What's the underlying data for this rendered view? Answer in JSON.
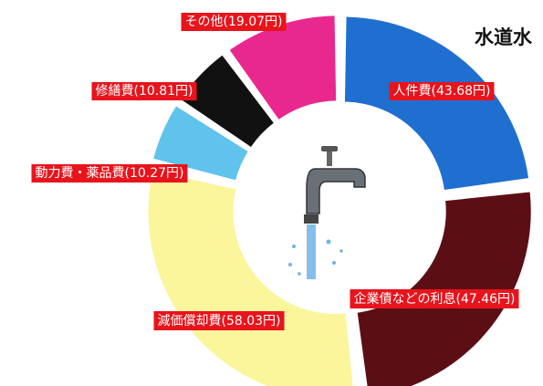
{
  "chart_data": {
    "type": "pie",
    "title": "水道水",
    "categories": [
      "人件費",
      "企業債などの利息",
      "減価償却費",
      "動力費・薬品費",
      "修繕費",
      "その他"
    ],
    "values": [
      43.68,
      47.46,
      58.03,
      10.27,
      10.81,
      19.07
    ],
    "value_labels": [
      "(43.68円)",
      "(47.46円)",
      "(58.03円)",
      "(10.27円)",
      "(10.81円)",
      "(19.07円)"
    ],
    "colors": [
      "#1f6fd1",
      "#5b0f14",
      "#fbf59c",
      "#5fc3ec",
      "#111111",
      "#e8288f"
    ],
    "label_color": "#e8141c"
  }
}
